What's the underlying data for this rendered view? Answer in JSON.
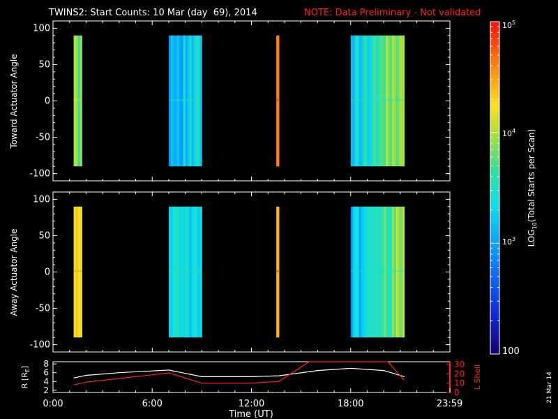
{
  "header": {
    "title": "TWINS2: Start Counts: 10 Mar (day  69), 2014",
    "note": "NOTE: Data Preliminary - Not validated"
  },
  "stamp": "21 Mar 14",
  "colors": {
    "background": "#000000",
    "text": "#ffffff",
    "note": "#ff2020",
    "r_line": "#ffffff",
    "lshell_line": "#ff2020"
  },
  "colorbar": {
    "title_main": "LOG",
    "title_sub": "10",
    "title_rest": "(Total Starts per Scan)",
    "label_bottom": "100",
    "label_1e3_main": "10",
    "label_1e3_exp": "3",
    "label_1e4_main": "10",
    "label_1e4_exp": "4",
    "label_1e5_main": "10",
    "label_1e5_exp": "5"
  },
  "chart_data": [
    {
      "type": "heatmap",
      "ylabel": "Toward Actuator Angle",
      "ylim": [
        -110,
        110
      ],
      "yticks": [
        "100",
        "50",
        "0",
        "-50",
        "-100"
      ],
      "xlim_hours": [
        0,
        24
      ],
      "value_units": "log10 total starts per scan",
      "scan_blocks": [
        {
          "start": "1:15",
          "end": "1:45",
          "level": 3.8
        },
        {
          "start": "7:00",
          "end": "9:00",
          "level": 3.15
        },
        {
          "start": "13:30",
          "end": "13:40",
          "level": 4.6
        },
        {
          "start": "18:00",
          "end": "21:15",
          "level": 3.2
        }
      ]
    },
    {
      "type": "heatmap",
      "ylabel": "Away Actuator Angle",
      "ylim": [
        -110,
        110
      ],
      "yticks": [
        "100",
        "50",
        "0",
        "-50",
        "-100"
      ],
      "xlim_hours": [
        0,
        24
      ],
      "value_units": "log10 total starts per scan",
      "scan_blocks": [
        {
          "start": "1:15",
          "end": "1:45",
          "level": 4.2
        },
        {
          "start": "7:00",
          "end": "9:00",
          "level": 3.3
        },
        {
          "start": "13:30",
          "end": "13:40",
          "level": 4.6
        },
        {
          "start": "18:00",
          "end": "21:15",
          "level": 3.1
        }
      ]
    },
    {
      "type": "line",
      "ylabel_left": "R [R",
      "ylabel_left_sub": "E",
      "ylabel_left_end": "]",
      "ylabel_right": "L Shell",
      "xlabel": "Time (UT)",
      "xticks": [
        "0:00",
        "6:00",
        "12:00",
        "18:00",
        "23:59"
      ],
      "yticks_left": [
        "2",
        "4",
        "6",
        "8"
      ],
      "yticks_right": [
        "0",
        "10",
        "20",
        "30"
      ],
      "ylim_left": [
        1.5,
        8.5
      ],
      "ylim_right": [
        0,
        33
      ],
      "series": [
        {
          "axis": "left",
          "x": [
            "1:15",
            "2:00",
            "4:00",
            "6:00",
            "7:00",
            "9:00",
            "12:00",
            "13:40",
            "16:00",
            "18:00",
            "20:00",
            "21:15"
          ],
          "y": [
            4.8,
            5.4,
            6.0,
            6.4,
            6.6,
            5.1,
            5.1,
            5.3,
            6.5,
            7.0,
            6.5,
            5.1
          ]
        },
        {
          "axis": "right",
          "x": [
            "1:15",
            "2:00",
            "4:00",
            "6:00",
            "7:00",
            "9:00",
            "12:00",
            "13:40",
            "15:30",
            "20:15",
            "21:15"
          ],
          "y": [
            8,
            11,
            15,
            19,
            21,
            10,
            10,
            12,
            33,
            33,
            13
          ]
        }
      ]
    }
  ]
}
